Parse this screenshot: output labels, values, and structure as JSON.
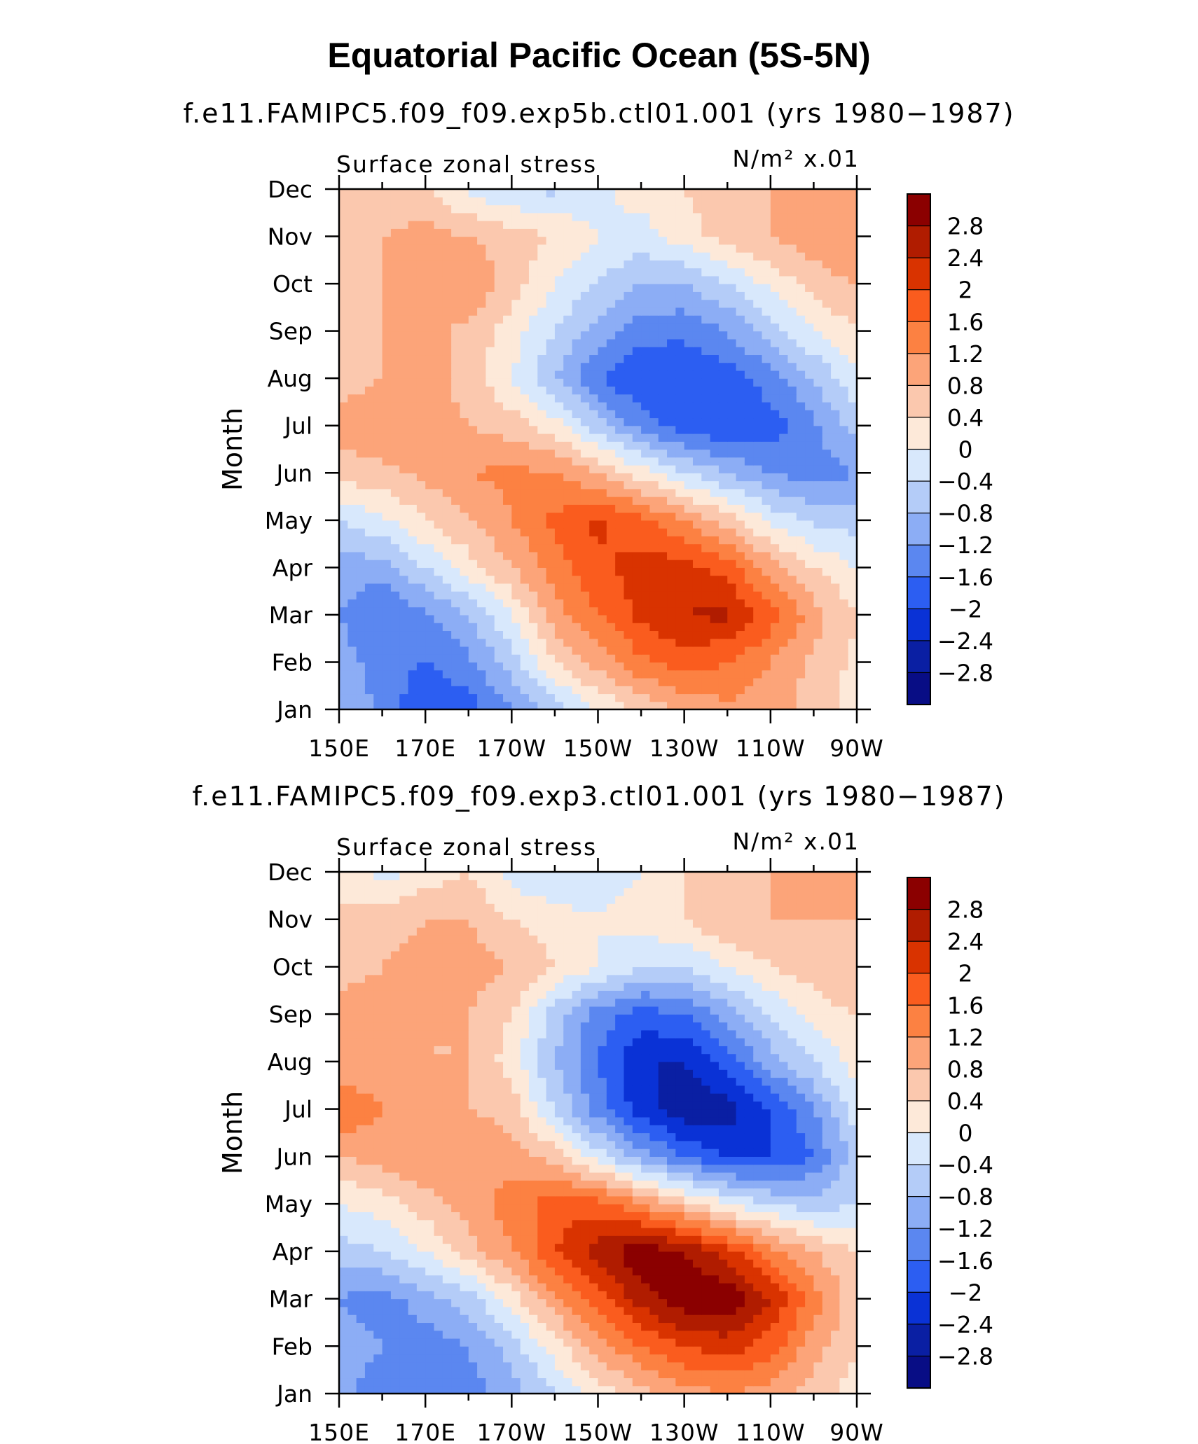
{
  "title": "Equatorial Pacific Ocean (5S-5N)",
  "colorbar": {
    "levels": [
      "2.8",
      "2.4",
      "2",
      "1.6",
      "1.2",
      "0.8",
      "0.4",
      "0",
      "−0.4",
      "−0.8",
      "−1.2",
      "−1.6",
      "−2",
      "−2.4",
      "−2.8"
    ],
    "colors": [
      "#8b0000",
      "#b01c00",
      "#d93300",
      "#fa5c1e",
      "#fc8142",
      "#fca479",
      "#fbc8ae",
      "#fde9d9",
      "#d8e8fc",
      "#b4ccf8",
      "#8cadf5",
      "#5b87f0",
      "#2c5ef2",
      "#0a32d6",
      "#0a1fa3",
      "#080d85"
    ]
  },
  "chart_data": [
    {
      "type": "heatmap",
      "subtitle": "f.e11.FAMIPC5.f09_f09.exp5b.ctl01.001 (yrs 1980−1987)",
      "left_label": "Surface zonal stress",
      "right_label": "N/m² x.01",
      "ylabel": "Month",
      "xlabel": "",
      "x_ticks": [
        "150E",
        "170E",
        "170W",
        "150W",
        "130W",
        "110W",
        "90W"
      ],
      "y_ticks": [
        "Jan",
        "Feb",
        "Mar",
        "Apr",
        "May",
        "Jun",
        "Jul",
        "Aug",
        "Sep",
        "Oct",
        "Nov",
        "Dec"
      ],
      "xlim": [
        150,
        270
      ],
      "months": [
        1,
        2,
        3,
        4,
        5,
        6,
        7,
        8,
        9,
        10,
        11,
        12
      ],
      "lon": [
        150,
        160,
        170,
        180,
        190,
        200,
        210,
        220,
        230,
        240,
        250,
        260,
        270
      ],
      "values": [
        [
          -1.0,
          -1.5,
          -2.2,
          -2.0,
          -1.4,
          -0.8,
          -0.2,
          0.3,
          0.7,
          0.9,
          0.8,
          0.4,
          0.0
        ],
        [
          -1.2,
          -1.6,
          -1.8,
          -1.5,
          -0.8,
          0.2,
          0.8,
          1.3,
          1.6,
          1.4,
          1.0,
          0.5,
          0.1
        ],
        [
          -1.4,
          -1.8,
          -1.5,
          -1.0,
          -0.2,
          0.8,
          1.4,
          1.9,
          2.2,
          2.3,
          1.6,
          0.8,
          0.2
        ],
        [
          -1.2,
          -1.2,
          -0.6,
          0.0,
          0.6,
          1.2,
          1.7,
          2.0,
          2.0,
          1.6,
          0.8,
          0.2,
          -0.2
        ],
        [
          -0.6,
          -0.3,
          0.2,
          0.6,
          1.0,
          1.5,
          1.9,
          1.5,
          1.0,
          0.4,
          -0.3,
          -0.7,
          -0.8
        ],
        [
          0.4,
          0.5,
          0.7,
          1.0,
          1.1,
          1.0,
          0.6,
          0.0,
          -0.6,
          -1.0,
          -1.4,
          -1.6,
          -1.4
        ],
        [
          0.8,
          0.9,
          0.8,
          0.6,
          0.4,
          0.0,
          -0.8,
          -1.6,
          -2.0,
          -2.2,
          -2.0,
          -1.5,
          -0.8
        ],
        [
          0.4,
          0.6,
          0.8,
          0.4,
          -0.2,
          -1.0,
          -1.8,
          -2.2,
          -2.2,
          -2.0,
          -1.6,
          -1.0,
          -0.3
        ],
        [
          0.3,
          0.6,
          0.7,
          0.5,
          0.0,
          -0.6,
          -1.2,
          -1.6,
          -1.7,
          -1.4,
          -0.8,
          -0.2,
          0.2
        ],
        [
          0.2,
          0.6,
          0.8,
          1.0,
          0.4,
          -0.2,
          -0.6,
          -1.0,
          -1.0,
          -0.6,
          -0.1,
          0.4,
          0.6
        ],
        [
          0.2,
          0.6,
          0.8,
          0.6,
          0.4,
          0.2,
          -0.2,
          -0.4,
          0.0,
          0.4,
          0.6,
          0.8,
          1.0
        ],
        [
          0.2,
          0.3,
          0.2,
          -0.3,
          -0.6,
          -0.7,
          -0.3,
          0.0,
          0.2,
          0.4,
          0.6,
          0.8,
          0.8
        ]
      ]
    },
    {
      "type": "heatmap",
      "subtitle": "f.e11.FAMIPC5.f09_f09.exp3.ctl01.001 (yrs 1980−1987)",
      "left_label": "Surface zonal stress",
      "right_label": "N/m² x.01",
      "ylabel": "Month",
      "xlabel": "",
      "x_ticks": [
        "150E",
        "170E",
        "170W",
        "150W",
        "130W",
        "110W",
        "90W"
      ],
      "y_ticks": [
        "Jan",
        "Feb",
        "Mar",
        "Apr",
        "May",
        "Jun",
        "Jul",
        "Aug",
        "Sep",
        "Oct",
        "Nov",
        "Dec"
      ],
      "xlim": [
        150,
        270
      ],
      "months": [
        1,
        2,
        3,
        4,
        5,
        6,
        7,
        8,
        9,
        10,
        11,
        12
      ],
      "lon": [
        150,
        160,
        170,
        180,
        190,
        200,
        210,
        220,
        230,
        240,
        250,
        260,
        270
      ],
      "values": [
        [
          -1.3,
          -1.6,
          -1.8,
          -1.6,
          -1.2,
          -0.6,
          0.0,
          0.4,
          0.8,
          1.0,
          0.8,
          0.4,
          0.0
        ],
        [
          -1.2,
          -1.4,
          -1.6,
          -1.4,
          -0.8,
          0.0,
          0.8,
          1.4,
          1.8,
          2.0,
          1.6,
          0.8,
          0.2
        ],
        [
          -1.4,
          -1.6,
          -1.2,
          -0.8,
          0.0,
          0.9,
          1.6,
          2.4,
          2.9,
          2.9,
          2.2,
          1.2,
          0.3
        ],
        [
          -0.8,
          -0.6,
          -0.2,
          0.4,
          1.0,
          1.8,
          2.4,
          2.9,
          2.6,
          2.0,
          1.2,
          0.6,
          0.2
        ],
        [
          -0.2,
          0.0,
          0.4,
          0.8,
          1.2,
          1.6,
          1.6,
          1.0,
          0.4,
          -0.2,
          -0.6,
          -0.8,
          -0.6
        ],
        [
          0.6,
          0.8,
          1.0,
          1.0,
          0.8,
          0.4,
          -0.4,
          -1.2,
          -1.8,
          -2.2,
          -2.2,
          -1.8,
          -0.8
        ],
        [
          1.4,
          1.0,
          0.8,
          0.6,
          0.4,
          -0.6,
          -1.6,
          -2.4,
          -2.9,
          -2.8,
          -2.2,
          -1.4,
          -0.4
        ],
        [
          0.6,
          0.8,
          0.6,
          0.6,
          0.0,
          -1.0,
          -1.8,
          -2.6,
          -2.6,
          -2.0,
          -1.2,
          -0.6,
          0.0
        ],
        [
          0.8,
          0.8,
          0.6,
          0.6,
          0.2,
          -0.8,
          -1.6,
          -2.0,
          -1.8,
          -1.2,
          -0.6,
          0.0,
          0.2
        ],
        [
          0.4,
          0.6,
          0.8,
          0.8,
          0.6,
          0.2,
          -0.2,
          -0.6,
          -0.6,
          -0.2,
          0.2,
          0.4,
          0.6
        ],
        [
          0.2,
          0.4,
          0.6,
          0.6,
          0.2,
          0.0,
          -0.2,
          0.0,
          0.2,
          0.6,
          0.6,
          0.6,
          0.6
        ],
        [
          0.2,
          -0.4,
          0.0,
          0.2,
          -0.4,
          -0.6,
          -0.4,
          -0.2,
          0.2,
          0.4,
          0.6,
          0.8,
          0.8
        ]
      ]
    }
  ]
}
